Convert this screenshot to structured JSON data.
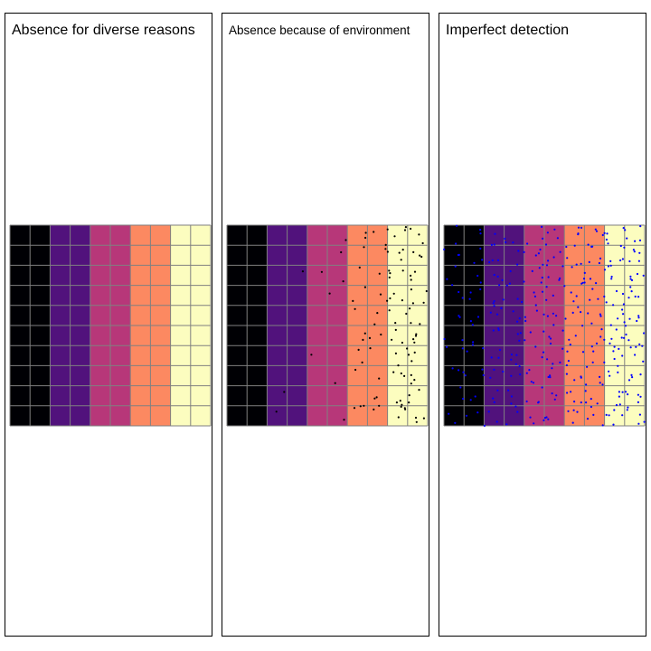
{
  "panels": [
    {
      "title": "Absence for diverse reasons",
      "points": "none"
    },
    {
      "title": "Absence because of environment",
      "points": "black"
    },
    {
      "title": "Imperfect detection",
      "points": "blue"
    }
  ],
  "grid": {
    "columns": 10,
    "rows": 10,
    "line_color": "#808080"
  },
  "column_band_colors": [
    "#000004",
    "#51127c",
    "#b73779",
    "#fc8961",
    "#fcfdbf"
  ],
  "point_colors": {
    "black": "#000000",
    "blue": "#0000ff"
  }
}
